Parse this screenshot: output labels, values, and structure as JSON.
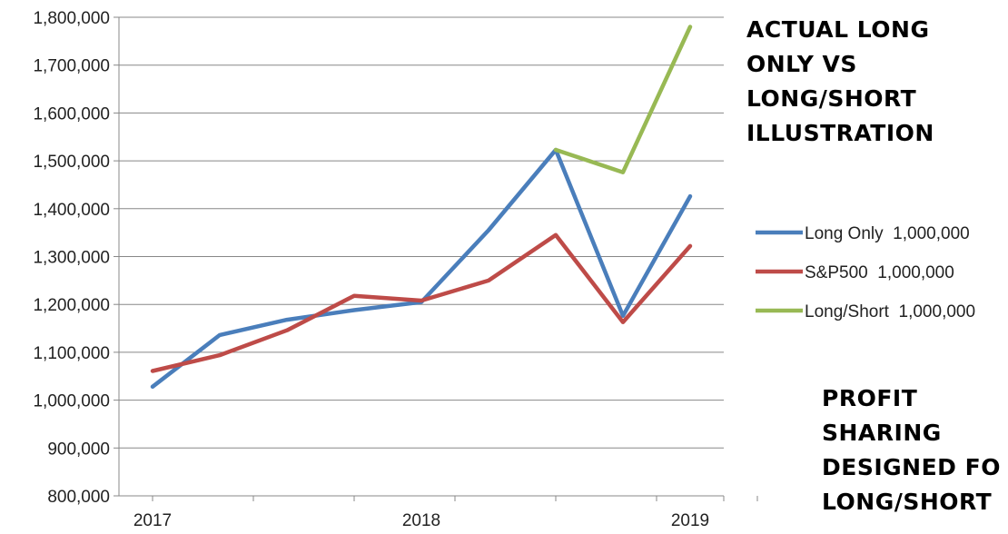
{
  "chart_data": {
    "type": "line",
    "x": [
      1,
      2,
      3,
      4,
      5,
      6,
      7,
      8,
      9
    ],
    "x_tick_labels": [
      {
        "at": 1,
        "label": "2017"
      },
      {
        "at": 5,
        "label": "2018"
      },
      {
        "at": 9,
        "label": "2019"
      }
    ],
    "xlim": [
      0.5,
      9.5
    ],
    "ylim": [
      800000,
      1800000
    ],
    "y_ticks": [
      800000,
      900000,
      1000000,
      1100000,
      1200000,
      1300000,
      1400000,
      1500000,
      1600000,
      1700000,
      1800000
    ],
    "y_tick_labels": [
      "800,000",
      "900,000",
      "1,000,000",
      "1,100,000",
      "1,200,000",
      "1,300,000",
      "1,400,000",
      "1,500,000",
      "1,600,000",
      "1,700,000",
      "1,800,000"
    ],
    "grid": "horizontal",
    "legend_position": "right",
    "series": [
      {
        "name": "Long Only  1,000,000",
        "color": "#4a7ebb",
        "values": [
          1028000,
          1136000,
          1168000,
          1188000,
          1205000,
          1355000,
          1523000,
          1176000,
          1426000
        ]
      },
      {
        "name": "S&P500  1,000,000",
        "color": "#be4b48",
        "values": [
          1061000,
          1094000,
          1146000,
          1218000,
          1208000,
          1250000,
          1345000,
          1163000,
          1322000
        ]
      },
      {
        "name": "Long/Short  1,000,000",
        "color": "#98b954",
        "values": [
          null,
          null,
          null,
          null,
          null,
          null,
          1523000,
          1476000,
          1780000
        ]
      }
    ]
  },
  "annotations": {
    "title_lines": [
      "ACTUAL LONG",
      "ONLY VS",
      "LONG/SHORT",
      "ILLUSTRATION"
    ],
    "note_lines": [
      "PROFIT",
      "SHARING",
      "DESIGNED FO",
      "LONG/SHORT"
    ]
  }
}
